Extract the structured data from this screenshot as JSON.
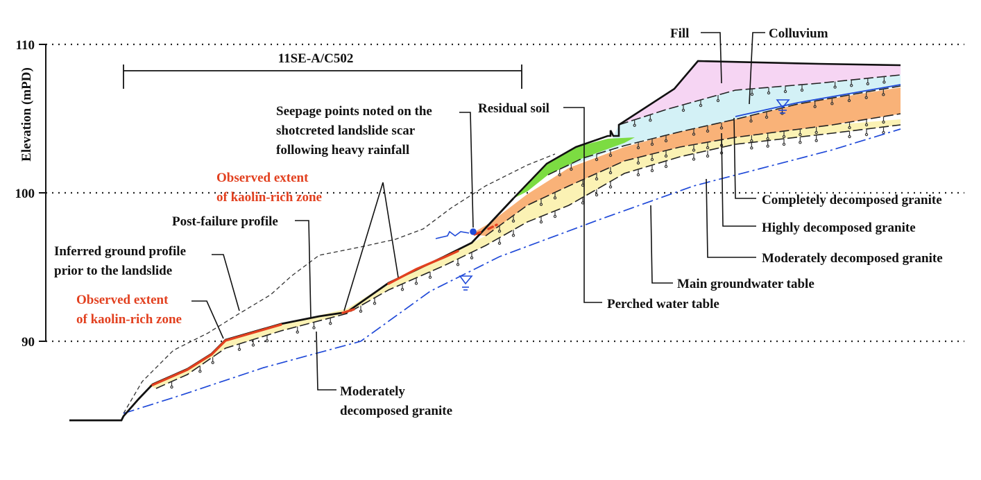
{
  "axis": {
    "ylabel": "Elevation (mPD)",
    "ticks": [
      "110",
      "100",
      "90"
    ]
  },
  "labels": {
    "feature_id": "11SE-A/C502",
    "fill": "Fill",
    "colluvium": "Colluvium",
    "residual_soil": "Residual soil",
    "seepage_1": "Seepage points noted on the",
    "seepage_2": "shotcreted landslide scar",
    "seepage_3": "following heavy rainfall",
    "kaolin_upper_1": "Observed extent",
    "kaolin_upper_2": "of kaolin-rich zone",
    "post_failure": "Post-failure profile",
    "inferred_1": "Inferred ground profile",
    "inferred_2": "prior to the landslide",
    "kaolin_lower_1": "Observed extent",
    "kaolin_lower_2": "of kaolin-rich zone",
    "cdg": "Completely decomposed granite",
    "hdg": "Highly decomposed granite",
    "mdg_right": "Moderately decomposed granite",
    "main_gwt": "Main groundwater table",
    "perched_wt": "Perched water table",
    "mdg_bottom_1": "Moderately",
    "mdg_bottom_2": "decomposed granite"
  },
  "colors": {
    "fill": "#f6d5f3",
    "colluvium": "#d3f1f6",
    "residual_soil": "#7cdc42",
    "completely_decomposed_granite": "#f9b278",
    "highly_moderately_decomposed_granite": "#fbf2b4",
    "kaolin": "#e2401f",
    "water_table": "#1f49d8"
  }
}
